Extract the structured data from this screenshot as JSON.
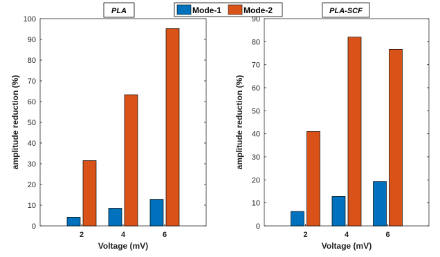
{
  "legend": {
    "entries": [
      {
        "name": "Mode-1",
        "color": "#0072BD"
      },
      {
        "name": "Mode-2",
        "color": "#D95319"
      }
    ]
  },
  "chart_data": [
    {
      "type": "bar",
      "title": "PLA",
      "xlabel": "Voltage (mV)",
      "ylabel": "amplitude reduction (%)",
      "categories": [
        "2",
        "4",
        "6"
      ],
      "ylim": [
        0,
        100
      ],
      "yticks": [
        0,
        10,
        20,
        30,
        40,
        50,
        60,
        70,
        80,
        90,
        100
      ],
      "series": [
        {
          "name": "Mode-1",
          "color": "#0072BD",
          "values": [
            4.2,
            8.5,
            12.8
          ]
        },
        {
          "name": "Mode-2",
          "color": "#D95319",
          "values": [
            31.5,
            63.3,
            95.2
          ]
        }
      ]
    },
    {
      "type": "bar",
      "title": "PLA-SCF",
      "xlabel": "Voltage (mV)",
      "ylabel": "amplitude reduction (%)",
      "categories": [
        "2",
        "4",
        "6"
      ],
      "ylim": [
        0,
        90
      ],
      "yticks": [
        0,
        10,
        20,
        30,
        40,
        50,
        60,
        70,
        80,
        90
      ],
      "series": [
        {
          "name": "Mode-1",
          "color": "#0072BD",
          "values": [
            6.3,
            12.8,
            19.3
          ]
        },
        {
          "name": "Mode-2",
          "color": "#D95319",
          "values": [
            41.0,
            82.0,
            76.7
          ]
        }
      ]
    }
  ]
}
